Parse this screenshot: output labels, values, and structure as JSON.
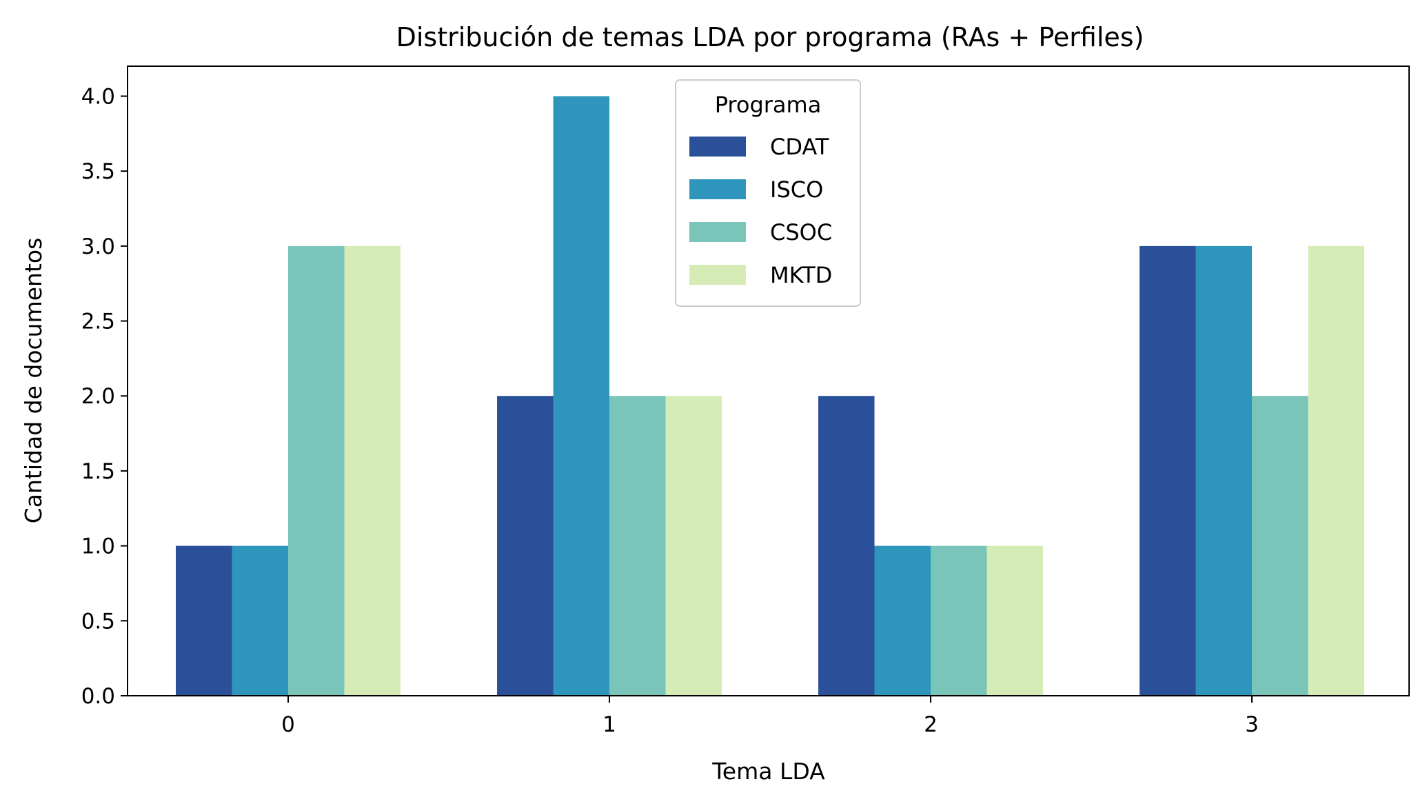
{
  "chart_data": {
    "type": "bar",
    "title": "Distribución de temas LDA por programa (RAs + Perfiles)",
    "xlabel": "Tema LDA",
    "ylabel": "Cantidad de documentos",
    "categories": [
      "0",
      "1",
      "2",
      "3"
    ],
    "series": [
      {
        "name": "CDAT",
        "color": "#2a5099",
        "values": [
          1,
          2,
          2,
          3
        ]
      },
      {
        "name": "ISCO",
        "color": "#2e96bd",
        "values": [
          1,
          4,
          1,
          3
        ]
      },
      {
        "name": "CSOC",
        "color": "#79c5b9",
        "values": [
          3,
          2,
          1,
          2
        ]
      },
      {
        "name": "MKTD",
        "color": "#d5ecb7",
        "values": [
          3,
          2,
          1,
          3
        ]
      }
    ],
    "ylim": [
      0,
      4.2
    ],
    "yticks": [
      "0.0",
      "0.5",
      "1.0",
      "1.5",
      "2.0",
      "2.5",
      "3.0",
      "3.5",
      "4.0"
    ],
    "legend": {
      "title": "Programa",
      "placement": "upper-center"
    },
    "grid": false
  }
}
